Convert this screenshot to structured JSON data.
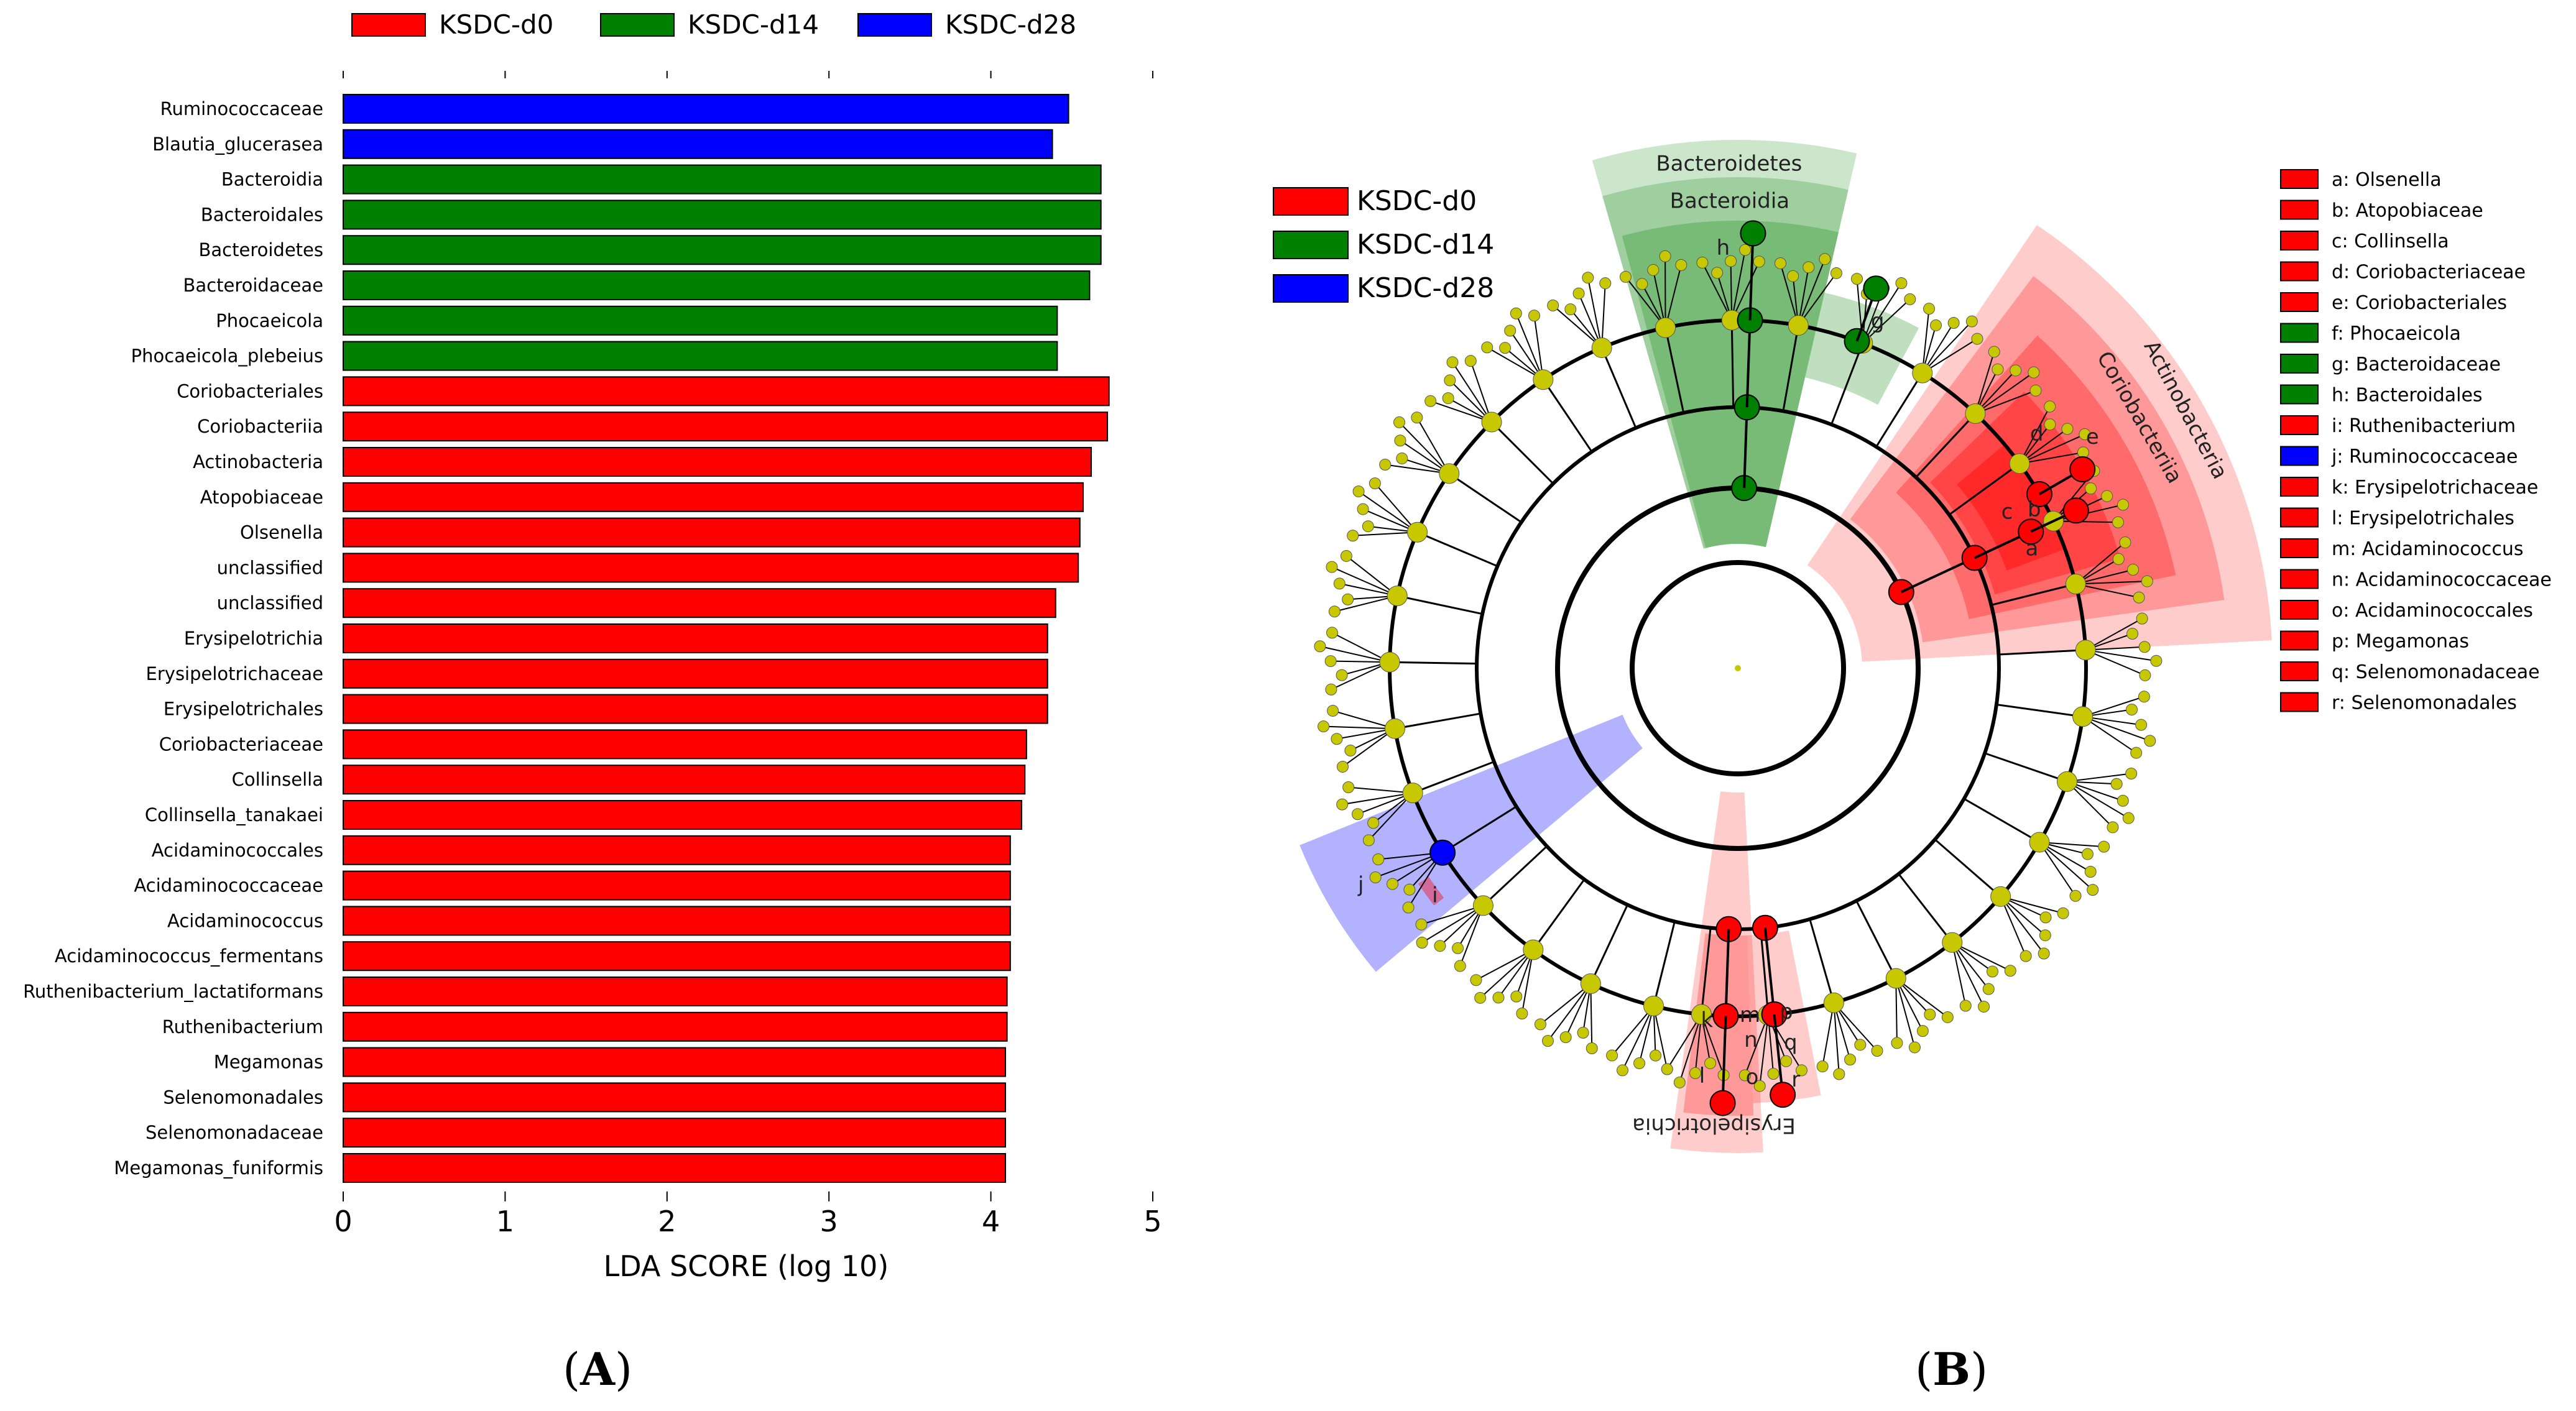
{
  "colors": {
    "d0": "#ff0000",
    "d14": "#008000",
    "d28": "#0000ff",
    "node": "#c8c800"
  },
  "panel_labels": {
    "a": "A",
    "b": "B"
  },
  "chart_data": [
    {
      "type": "bar",
      "orientation": "horizontal",
      "xlabel": "LDA SCORE (log 10)",
      "xlim": [
        0,
        5
      ],
      "xticks": [
        0,
        1,
        2,
        3,
        4,
        5
      ],
      "grid": false,
      "legend": {
        "placement": "top",
        "entries": [
          {
            "label": "KSDC-d0",
            "key": "d0"
          },
          {
            "label": "KSDC-d14",
            "key": "d14"
          },
          {
            "label": "KSDC-d28",
            "key": "d28"
          }
        ]
      },
      "bars": [
        {
          "label": "Ruminococcaceae",
          "value": 4.48,
          "group": "d28"
        },
        {
          "label": "Blautia_glucerasea",
          "value": 4.38,
          "group": "d28"
        },
        {
          "label": "Bacteroidia",
          "value": 4.68,
          "group": "d14"
        },
        {
          "label": "Bacteroidales",
          "value": 4.68,
          "group": "d14"
        },
        {
          "label": "Bacteroidetes",
          "value": 4.68,
          "group": "d14"
        },
        {
          "label": "Bacteroidaceae",
          "value": 4.61,
          "group": "d14"
        },
        {
          "label": "Phocaeicola",
          "value": 4.41,
          "group": "d14"
        },
        {
          "label": "Phocaeicola_plebeius",
          "value": 4.41,
          "group": "d14"
        },
        {
          "label": "Coriobacteriales",
          "value": 4.73,
          "group": "d0"
        },
        {
          "label": "Coriobacteriia",
          "value": 4.72,
          "group": "d0"
        },
        {
          "label": "Actinobacteria",
          "value": 4.62,
          "group": "d0"
        },
        {
          "label": "Atopobiaceae",
          "value": 4.57,
          "group": "d0"
        },
        {
          "label": "Olsenella",
          "value": 4.55,
          "group": "d0"
        },
        {
          "label": "unclassified",
          "value": 4.54,
          "group": "d0"
        },
        {
          "label": "unclassified",
          "value": 4.4,
          "group": "d0"
        },
        {
          "label": "Erysipelotrichia",
          "value": 4.35,
          "group": "d0"
        },
        {
          "label": "Erysipelotrichaceae",
          "value": 4.35,
          "group": "d0"
        },
        {
          "label": "Erysipelotrichales",
          "value": 4.35,
          "group": "d0"
        },
        {
          "label": "Coriobacteriaceae",
          "value": 4.22,
          "group": "d0"
        },
        {
          "label": "Collinsella",
          "value": 4.21,
          "group": "d0"
        },
        {
          "label": "Collinsella_tanakaei",
          "value": 4.19,
          "group": "d0"
        },
        {
          "label": "Acidaminococcales",
          "value": 4.12,
          "group": "d0"
        },
        {
          "label": "Acidaminococcaceae",
          "value": 4.12,
          "group": "d0"
        },
        {
          "label": "Acidaminococcus",
          "value": 4.12,
          "group": "d0"
        },
        {
          "label": "Acidaminococcus_fermentans",
          "value": 4.12,
          "group": "d0"
        },
        {
          "label": "Ruthenibacterium_lactatiformans",
          "value": 4.1,
          "group": "d0"
        },
        {
          "label": "Ruthenibacterium",
          "value": 4.1,
          "group": "d0"
        },
        {
          "label": "Megamonas",
          "value": 4.09,
          "group": "d0"
        },
        {
          "label": "Selenomonadales",
          "value": 4.09,
          "group": "d0"
        },
        {
          "label": "Selenomonadaceae",
          "value": 4.09,
          "group": "d0"
        },
        {
          "label": "Megamonas_funiformis",
          "value": 4.09,
          "group": "d0"
        }
      ]
    },
    {
      "type": "cladogram",
      "legend": {
        "entries": [
          {
            "label": "KSDC-d0",
            "key": "d0"
          },
          {
            "label": "KSDC-d14",
            "key": "d14"
          },
          {
            "label": "KSDC-d28",
            "key": "d28"
          }
        ]
      },
      "sector_labels": [
        {
          "text": "Bacteroidetes",
          "group": "d14"
        },
        {
          "text": "Bacteroidia",
          "group": "d14"
        },
        {
          "text": "h",
          "group": "d14"
        },
        {
          "text": "g",
          "group": "d14"
        },
        {
          "text": "Actinobacteria",
          "group": "d0"
        },
        {
          "text": "Coriobacteriia",
          "group": "d0"
        },
        {
          "text": "e",
          "group": "d0"
        },
        {
          "text": "d",
          "group": "d0"
        },
        {
          "text": "b",
          "group": "d0"
        },
        {
          "text": "a",
          "group": "d0"
        },
        {
          "text": "c",
          "group": "d0"
        },
        {
          "text": "Erysipelotrichia",
          "group": "d0"
        },
        {
          "text": "k",
          "group": "d0"
        },
        {
          "text": "l",
          "group": "d0"
        },
        {
          "text": "m",
          "group": "d0"
        },
        {
          "text": "n",
          "group": "d0"
        },
        {
          "text": "o",
          "group": "d0"
        },
        {
          "text": "p",
          "group": "d0"
        },
        {
          "text": "q",
          "group": "d0"
        },
        {
          "text": "r",
          "group": "d0"
        },
        {
          "text": "j",
          "group": "d28"
        },
        {
          "text": "i",
          "group": "d0"
        }
      ],
      "taxa_key": [
        {
          "text": "a: Olsenella",
          "group": "d0"
        },
        {
          "text": "b: Atopobiaceae",
          "group": "d0"
        },
        {
          "text": "c: Collinsella",
          "group": "d0"
        },
        {
          "text": "d: Coriobacteriaceae",
          "group": "d0"
        },
        {
          "text": "e: Coriobacteriales",
          "group": "d0"
        },
        {
          "text": "f: Phocaeicola",
          "group": "d14"
        },
        {
          "text": "g: Bacteroidaceae",
          "group": "d14"
        },
        {
          "text": "h: Bacteroidales",
          "group": "d14"
        },
        {
          "text": "i: Ruthenibacterium",
          "group": "d0"
        },
        {
          "text": "j: Ruminococcaceae",
          "group": "d28"
        },
        {
          "text": "k: Erysipelotrichaceae",
          "group": "d0"
        },
        {
          "text": "l: Erysipelotrichales",
          "group": "d0"
        },
        {
          "text": "m: Acidaminococcus",
          "group": "d0"
        },
        {
          "text": "n: Acidaminococcaceae",
          "group": "d0"
        },
        {
          "text": "o: Acidaminococcales",
          "group": "d0"
        },
        {
          "text": "p: Megamonas",
          "group": "d0"
        },
        {
          "text": "q: Selenomonadaceae",
          "group": "d0"
        },
        {
          "text": "r: Selenomonadales",
          "group": "d0"
        }
      ]
    }
  ]
}
